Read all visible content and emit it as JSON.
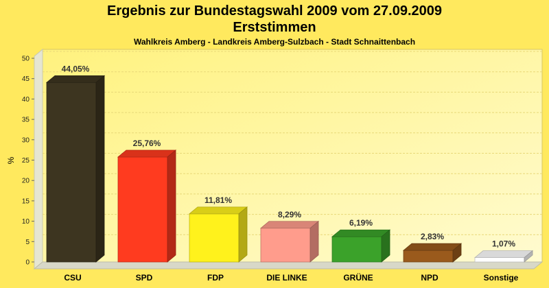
{
  "chart_data": {
    "type": "bar",
    "title": "Ergebnis zur Bundestagswahl 2009 vom 27.09.2009",
    "title2": "Erststimmen",
    "subtitle": "Wahlkreis Amberg - Landkreis Amberg-Sulzbach - Stadt Schnaittenbach",
    "ylabel": "%",
    "ylim": [
      0,
      50
    ],
    "yticks": [
      0,
      5,
      10,
      15,
      20,
      25,
      30,
      35,
      40,
      45,
      50
    ],
    "grid": true,
    "legend": "none",
    "categories": [
      "CSU",
      "SPD",
      "FDP",
      "DIE LINKE",
      "GRÜNE",
      "NPD",
      "Sonstige"
    ],
    "values": [
      44.05,
      25.76,
      11.81,
      8.29,
      6.19,
      2.83,
      1.07
    ],
    "data_labels": [
      "44,05%",
      "25,76%",
      "11,81%",
      "8,29%",
      "6,19%",
      "2,83%",
      "1,07%"
    ],
    "colors": [
      "#3d3520",
      "#ff3b1f",
      "#fff21c",
      "#ff9c8c",
      "#3ba22a",
      "#9a5a1c",
      "#ffffff"
    ]
  }
}
